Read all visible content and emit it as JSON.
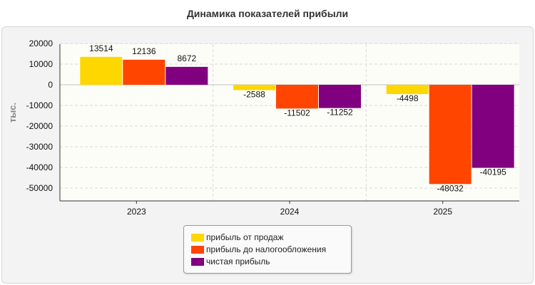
{
  "chart_data": {
    "type": "bar",
    "title": "Динамика показателей прибыли",
    "ylabel": "тыс.",
    "categories": [
      "2023",
      "2024",
      "2025"
    ],
    "ylim": [
      -55000,
      20000
    ],
    "yticks": [
      20000,
      10000,
      0,
      -10000,
      -20000,
      -30000,
      -40000,
      -50000
    ],
    "grid": true,
    "legend_position": "bottom-center",
    "series": [
      {
        "name": "прибыль от продаж",
        "color": "#FFD700",
        "values": [
          13514,
          -2588,
          -4498
        ]
      },
      {
        "name": "прибыль до налогообложения",
        "color": "#FF4500",
        "values": [
          12136,
          -11502,
          -48032
        ]
      },
      {
        "name": "чистая прибыль",
        "color": "#800080",
        "values": [
          8672,
          -11252,
          -40195
        ]
      }
    ]
  }
}
